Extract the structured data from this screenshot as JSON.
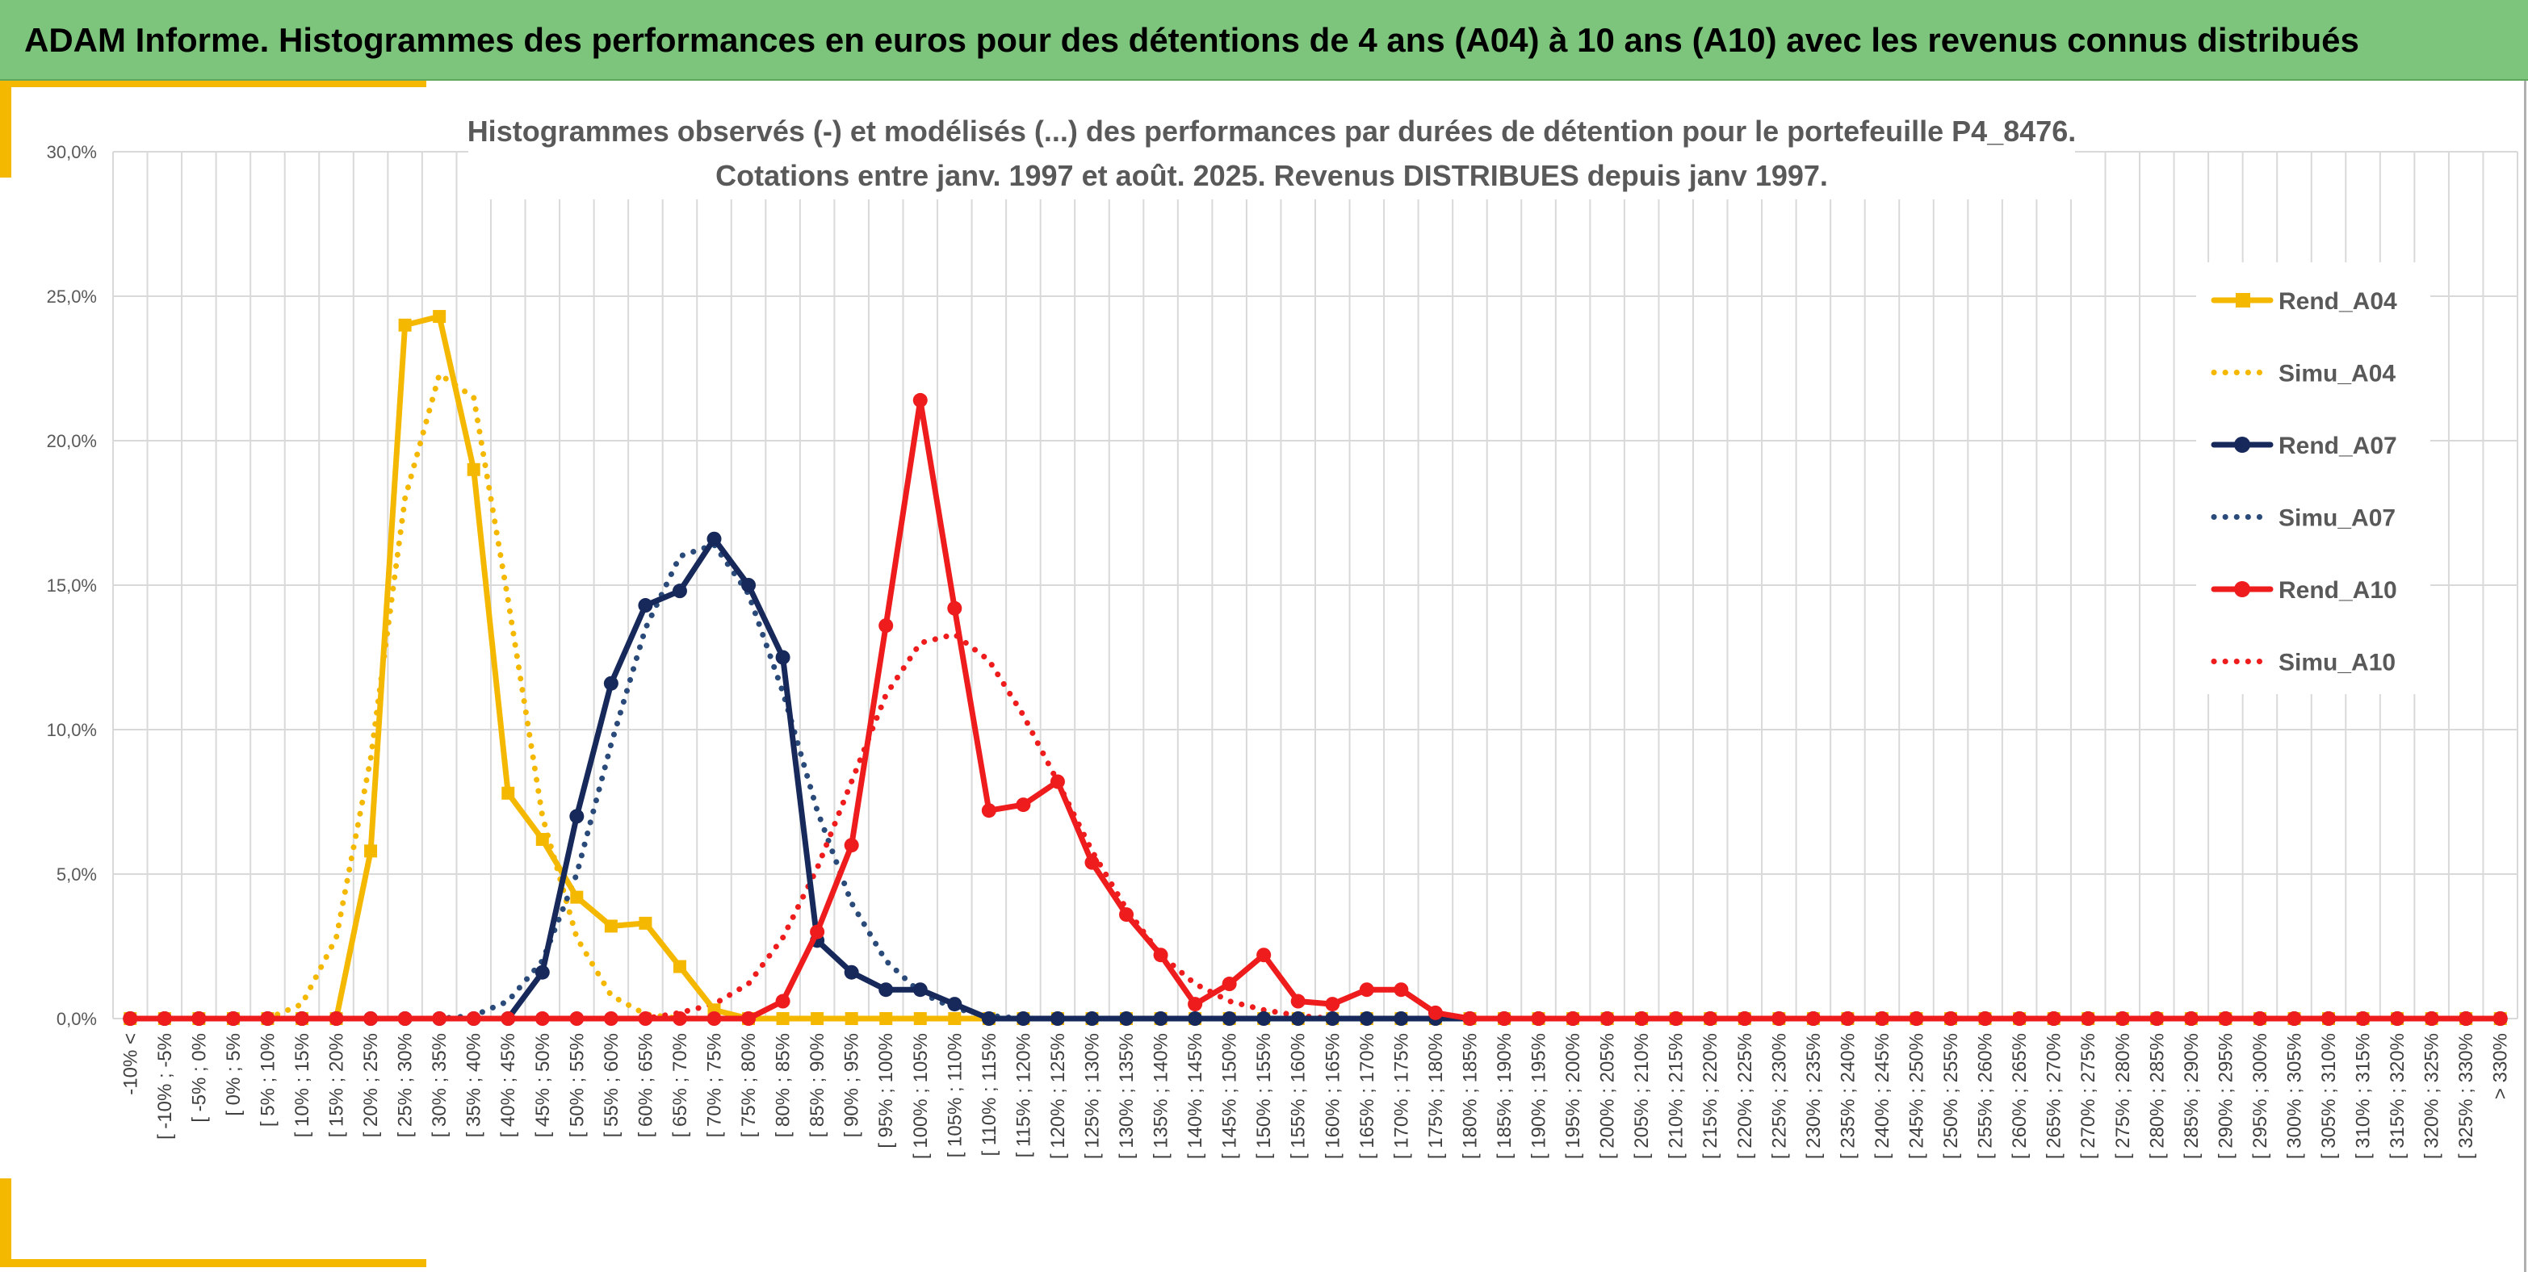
{
  "header": {
    "title": "ADAM Informe. Histogrammes des performances en euros pour des détentions de 4 ans (A04) à 10 ans (A10) avec les revenus connus distribués"
  },
  "chart_data": {
    "type": "line",
    "title_lines": [
      "Histogrammes observés (-) et modélisés (...) des performances par durées de détention pour le portefeuille P4_8476.",
      "Cotations entre janv. 1997 et août. 2025. Revenus DISTRIBUES depuis janv 1997."
    ],
    "xlabel": "",
    "ylabel": "",
    "ylim": [
      0,
      30
    ],
    "yticks": [
      0,
      5,
      10,
      15,
      20,
      25,
      30
    ],
    "ytick_labels": [
      "0,0%",
      "5,0%",
      "10,0%",
      "15,0%",
      "20,0%",
      "25,0%",
      "30,0%"
    ],
    "grid": true,
    "legend_position": "right",
    "categories": [
      "-10% <",
      "[ -10% ; -5%",
      "[ -5% ; 0%",
      "[ 0% ; 5%",
      "[ 5% ; 10%",
      "[ 10% ; 15%",
      "[ 15% ; 20%",
      "[ 20% ; 25%",
      "[ 25% ; 30%",
      "[ 30% ; 35%",
      "[ 35% ; 40%",
      "[ 40% ; 45%",
      "[ 45% ; 50%",
      "[ 50% ; 55%",
      "[ 55% ; 60%",
      "[ 60% ; 65%",
      "[ 65% ; 70%",
      "[ 70% ; 75%",
      "[ 75% ; 80%",
      "[ 80% ; 85%",
      "[ 85% ; 90%",
      "[ 90% ; 95%",
      "[ 95% ; 100%",
      "[ 100% ; 105%",
      "[ 105% ; 110%",
      "[ 110% ; 115%",
      "[ 115% ; 120%",
      "[ 120% ; 125%",
      "[ 125% ; 130%",
      "[ 130% ; 135%",
      "[ 135% ; 140%",
      "[ 140% ; 145%",
      "[ 145% ; 150%",
      "[ 150% ; 155%",
      "[ 155% ; 160%",
      "[ 160% ; 165%",
      "[ 165% ; 170%",
      "[ 170% ; 175%",
      "[ 175% ; 180%",
      "[ 180% ; 185%",
      "[ 185% ; 190%",
      "[ 190% ; 195%",
      "[ 195% ; 200%",
      "[ 200% ; 205%",
      "[ 205% ; 210%",
      "[ 210% ; 215%",
      "[ 215% ; 220%",
      "[ 220% ; 225%",
      "[ 225% ; 230%",
      "[ 230% ; 235%",
      "[ 235% ; 240%",
      "[ 240% ; 245%",
      "[ 245% ; 250%",
      "[ 250% ; 255%",
      "[ 255% ; 260%",
      "[ 260% ; 265%",
      "[ 265% ; 270%",
      "[ 270% ; 275%",
      "[ 275% ; 280%",
      "[ 280% ; 285%",
      "[ 285% ; 290%",
      "[ 290% ; 295%",
      "[ 295% ; 300%",
      "[ 300% ; 305%",
      "[ 305% ; 310%",
      "[ 310% ; 315%",
      "[ 315% ; 320%",
      "[ 320% ; 325%",
      "[ 325% ; 330%",
      "> 330%"
    ],
    "series": [
      {
        "name": "Rend_A04",
        "color": "#f5b800",
        "style": "solid",
        "marker": "square",
        "values": [
          0,
          0,
          0,
          0,
          0,
          0,
          0,
          5.8,
          24.0,
          24.3,
          19.0,
          7.8,
          6.2,
          4.2,
          3.2,
          3.3,
          1.8,
          0.3,
          0,
          0,
          0,
          0,
          0,
          0,
          0,
          0,
          0,
          0,
          0,
          0,
          0,
          0,
          0,
          0,
          0,
          0,
          0,
          0,
          0,
          0,
          0,
          0,
          0,
          0,
          0,
          0,
          0,
          0,
          0,
          0,
          0,
          0,
          0,
          0,
          0,
          0,
          0,
          0,
          0,
          0,
          0,
          0,
          0,
          0,
          0,
          0,
          0,
          0,
          0,
          0
        ]
      },
      {
        "name": "Simu_A04",
        "color": "#f5b800",
        "style": "dotted",
        "marker": "none",
        "values": [
          0,
          0,
          0,
          0,
          0,
          0.5,
          2.8,
          9.0,
          18.0,
          22.3,
          21.5,
          14.5,
          7.0,
          2.8,
          0.8,
          0.15,
          0,
          0,
          0,
          0,
          0,
          0,
          0,
          0,
          0,
          0,
          0,
          0,
          0,
          0,
          0,
          0,
          0,
          0,
          0,
          0,
          0,
          0,
          0,
          0,
          0,
          0,
          0,
          0,
          0,
          0,
          0,
          0,
          0,
          0,
          0,
          0,
          0,
          0,
          0,
          0,
          0,
          0,
          0,
          0,
          0,
          0,
          0,
          0,
          0,
          0,
          0,
          0,
          0,
          0
        ]
      },
      {
        "name": "Rend_A07",
        "color": "#16295a",
        "style": "solid",
        "marker": "circle",
        "values": [
          0,
          0,
          0,
          0,
          0,
          0,
          0,
          0,
          0,
          0,
          0,
          0,
          1.6,
          7.0,
          11.6,
          14.3,
          14.8,
          16.6,
          15.0,
          12.5,
          2.7,
          1.6,
          1.0,
          1.0,
          0.5,
          0,
          0,
          0,
          0,
          0,
          0,
          0,
          0,
          0,
          0,
          0,
          0,
          0,
          0,
          0,
          0,
          0,
          0,
          0,
          0,
          0,
          0,
          0,
          0,
          0,
          0,
          0,
          0,
          0,
          0,
          0,
          0,
          0,
          0,
          0,
          0,
          0,
          0,
          0,
          0,
          0,
          0,
          0,
          0,
          0
        ]
      },
      {
        "name": "Simu_A07",
        "color": "#2a4a7a",
        "style": "dotted",
        "marker": "none",
        "values": [
          0,
          0,
          0,
          0,
          0,
          0,
          0,
          0,
          0,
          0,
          0.1,
          0.6,
          2.0,
          5.0,
          9.5,
          13.5,
          16.0,
          16.4,
          14.7,
          11.3,
          7.2,
          4.0,
          2.0,
          0.9,
          0.35,
          0.1,
          0,
          0,
          0,
          0,
          0,
          0,
          0,
          0,
          0,
          0,
          0,
          0,
          0,
          0,
          0,
          0,
          0,
          0,
          0,
          0,
          0,
          0,
          0,
          0,
          0,
          0,
          0,
          0,
          0,
          0,
          0,
          0,
          0,
          0,
          0,
          0,
          0,
          0,
          0,
          0,
          0,
          0,
          0,
          0
        ]
      },
      {
        "name": "Rend_A10",
        "color": "#ee1c1c",
        "style": "solid",
        "marker": "circle",
        "values": [
          0,
          0,
          0,
          0,
          0,
          0,
          0,
          0,
          0,
          0,
          0,
          0,
          0,
          0,
          0,
          0,
          0,
          0,
          0,
          0.6,
          3.0,
          6.0,
          13.6,
          21.4,
          14.2,
          7.2,
          7.4,
          8.2,
          5.4,
          3.6,
          2.2,
          0.5,
          1.2,
          2.2,
          0.6,
          0.5,
          1.0,
          1.0,
          0.2,
          0,
          0,
          0,
          0,
          0,
          0,
          0,
          0,
          0,
          0,
          0,
          0,
          0,
          0,
          0,
          0,
          0,
          0,
          0,
          0,
          0,
          0,
          0,
          0,
          0,
          0,
          0,
          0,
          0,
          0,
          0
        ]
      },
      {
        "name": "Simu_A10",
        "color": "#ee1c1c",
        "style": "dotted",
        "marker": "none",
        "values": [
          0,
          0,
          0,
          0,
          0,
          0,
          0,
          0,
          0,
          0,
          0,
          0,
          0,
          0,
          0,
          0,
          0.2,
          0.5,
          1.2,
          2.8,
          5.2,
          8.2,
          11.2,
          13.0,
          13.3,
          12.4,
          10.5,
          8.2,
          5.8,
          3.8,
          2.2,
          1.2,
          0.6,
          0.3,
          0.1,
          0,
          0,
          0,
          0,
          0,
          0,
          0,
          0,
          0,
          0,
          0,
          0,
          0,
          0,
          0,
          0,
          0,
          0,
          0,
          0,
          0,
          0,
          0,
          0,
          0,
          0,
          0,
          0,
          0,
          0,
          0,
          0,
          0,
          0,
          0
        ]
      }
    ]
  }
}
